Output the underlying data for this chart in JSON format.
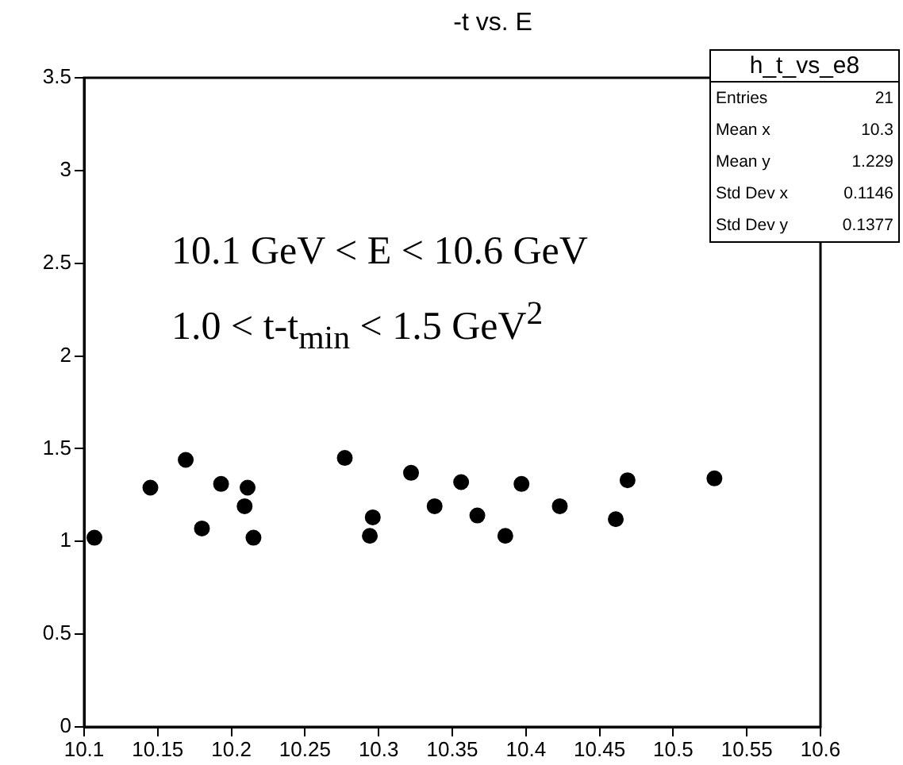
{
  "chart_data": {
    "type": "scatter",
    "title": "-t vs. E",
    "x": [
      10.107,
      10.145,
      10.169,
      10.18,
      10.193,
      10.209,
      10.211,
      10.215,
      10.277,
      10.296,
      10.294,
      10.322,
      10.338,
      10.356,
      10.367,
      10.386,
      10.397,
      10.423,
      10.461,
      10.469,
      10.528
    ],
    "series": [
      {
        "color": "#000000",
        "values": [
          1.02,
          1.29,
          1.44,
          1.07,
          1.31,
          1.19,
          1.29,
          1.02,
          1.45,
          1.13,
          1.03,
          1.37,
          1.19,
          1.32,
          1.14,
          1.03,
          1.31,
          1.19,
          1.12,
          1.33,
          1.34
        ]
      }
    ],
    "xlim": [
      10.1,
      10.6
    ],
    "xticks": [
      10.1,
      10.15,
      10.2,
      10.25,
      10.3,
      10.35,
      10.4,
      10.45,
      10.5,
      10.55,
      10.6
    ],
    "ylim": [
      0,
      3.5
    ],
    "yticks": [
      0,
      0.5,
      1,
      1.5,
      2,
      2.5,
      3,
      3.5
    ],
    "marker": "circle",
    "grid": false,
    "legend": false,
    "annotations": [
      "10.1 GeV < E < 10.6 GeV",
      "1.0 < t-t$_{min}$ < 1.5 GeV$^{2}$",
      "h_t_vs_e8",
      "Entries 21",
      "Mean x 10.3",
      "Mean y 1.229",
      "Std Dev x 0.1146",
      "Std Dev y 0.1377"
    ]
  }
}
